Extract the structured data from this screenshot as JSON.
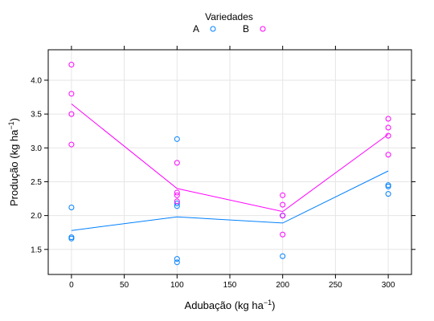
{
  "chart_data": {
    "type": "scatter",
    "legend": {
      "title": "Variedades",
      "placement": "top-center"
    },
    "xlabel": "Adubação (kg ha",
    "xlabel_sup": "−1",
    "xlabel_close": ")",
    "ylabel": "Produção (kg ha",
    "ylabel_sup": "−1",
    "ylabel_close": ")",
    "xlim": [
      -22,
      322
    ],
    "ylim": [
      1.13,
      4.45
    ],
    "x_ticks": [
      0,
      50,
      100,
      150,
      200,
      250,
      300
    ],
    "y_ticks": [
      1.5,
      2.0,
      2.5,
      3.0,
      3.5,
      4.0
    ],
    "y_tick_labels": [
      "1.5",
      "2.0",
      "2.5",
      "3.0",
      "3.5",
      "4.0"
    ],
    "grid": true,
    "series": [
      {
        "name": "A",
        "color": "#0080ff",
        "points": [
          [
            0,
            2.12
          ],
          [
            0,
            1.68
          ],
          [
            0,
            1.66
          ],
          [
            100,
            3.13
          ],
          [
            100,
            2.18
          ],
          [
            100,
            2.14
          ],
          [
            100,
            1.36
          ],
          [
            100,
            1.31
          ],
          [
            200,
            2.0
          ],
          [
            200,
            2.0
          ],
          [
            200,
            1.4
          ],
          [
            300,
            2.45
          ],
          [
            300,
            2.43
          ],
          [
            300,
            2.32
          ]
        ],
        "mean_line": [
          [
            0,
            1.78
          ],
          [
            100,
            1.98
          ],
          [
            200,
            1.89
          ],
          [
            300,
            2.66
          ]
        ]
      },
      {
        "name": "B",
        "color": "#ff00ff",
        "points": [
          [
            0,
            4.23
          ],
          [
            0,
            3.8
          ],
          [
            0,
            3.5
          ],
          [
            0,
            3.05
          ],
          [
            100,
            2.78
          ],
          [
            100,
            2.34
          ],
          [
            100,
            2.3
          ],
          [
            100,
            2.21
          ],
          [
            200,
            2.3
          ],
          [
            200,
            2.16
          ],
          [
            200,
            2.0
          ],
          [
            200,
            1.72
          ],
          [
            300,
            3.43
          ],
          [
            300,
            3.3
          ],
          [
            300,
            3.18
          ],
          [
            300,
            2.9
          ]
        ],
        "mean_line": [
          [
            0,
            3.65
          ],
          [
            100,
            2.4
          ],
          [
            200,
            2.06
          ],
          [
            300,
            3.2
          ]
        ]
      }
    ]
  }
}
